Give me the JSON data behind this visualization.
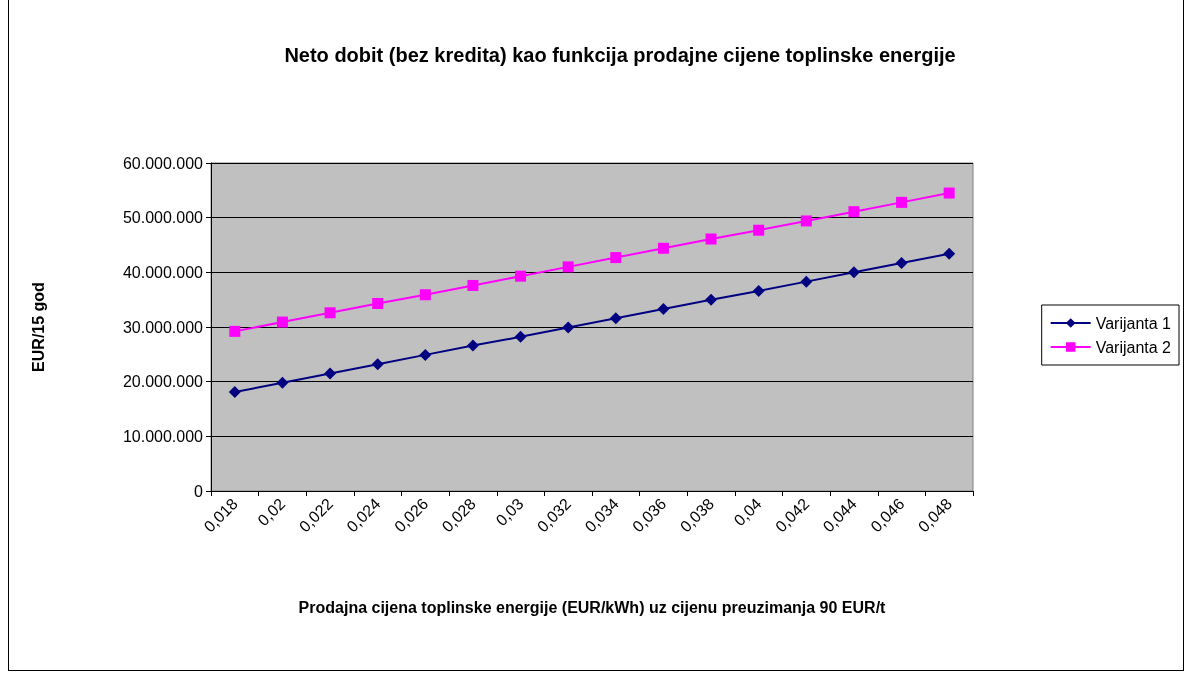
{
  "chart_data": {
    "type": "line",
    "title": "Neto dobit (bez kredita) kao funkcija prodajne cijene toplinske energije",
    "xlabel": "Prodajna cijena toplinske energije (EUR/kWh) uz cijenu preuzimanja 90 EUR/t",
    "ylabel": "EUR/15 god",
    "categories": [
      "0,018",
      "0,02",
      "0,022",
      "0,024",
      "0,026",
      "0,028",
      "0,03",
      "0,032",
      "0,034",
      "0,036",
      "0,038",
      "0,04",
      "0,042",
      "0,044",
      "0,046",
      "0,048"
    ],
    "series": [
      {
        "name": "Varijanta 1",
        "color": "#000080",
        "marker": "diamond",
        "values": [
          18100000,
          19800000,
          21500000,
          23200000,
          24900000,
          26600000,
          28200000,
          29900000,
          31600000,
          33300000,
          35000000,
          36600000,
          38300000,
          40000000,
          41700000,
          43400000
        ]
      },
      {
        "name": "Varijanta 2",
        "color": "#ff00ff",
        "marker": "square",
        "values": [
          29200000,
          30900000,
          32600000,
          34300000,
          35900000,
          37600000,
          39300000,
          41000000,
          42700000,
          44400000,
          46100000,
          47700000,
          49400000,
          51100000,
          52800000,
          54500000
        ]
      }
    ],
    "ylim": [
      0,
      60000000
    ],
    "yticks": [
      0,
      {
        "value": 10000000,
        "label": "10.000.000"
      },
      {
        "value": 20000000,
        "label": "20.000.000"
      },
      {
        "value": 30000000,
        "label": "30.000.000"
      },
      {
        "value": 40000000,
        "label": "40.000.000"
      },
      {
        "value": 50000000,
        "label": "50.000.000"
      },
      {
        "value": 60000000,
        "label": "60.000.000"
      }
    ],
    "grid": "y",
    "legend": "right",
    "line_style": "solid"
  }
}
